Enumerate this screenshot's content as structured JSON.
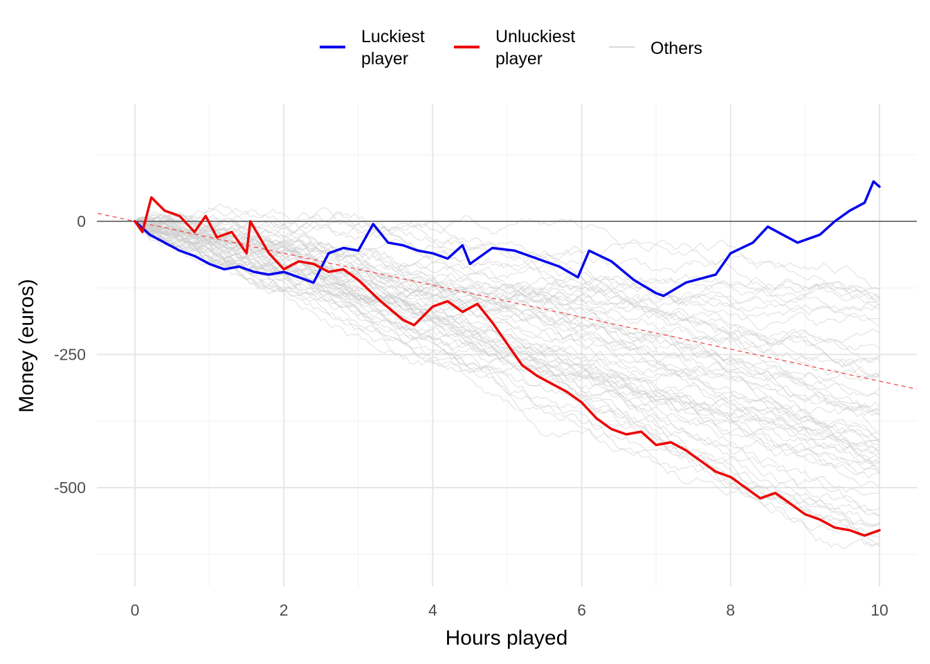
{
  "chart_data": {
    "type": "line",
    "xlabel": "Hours played",
    "ylabel": "Money (euros)",
    "xlim": [
      -0.5,
      10.5
    ],
    "ylim": [
      -660,
      220
    ],
    "x_ticks": [
      0,
      2,
      4,
      6,
      8,
      10
    ],
    "x_tick_labels": [
      "0",
      "2",
      "4",
      "6",
      "8",
      "10"
    ],
    "y_ticks": [
      0,
      -250,
      -500
    ],
    "y_tick_labels": [
      "0",
      "-250",
      "-500"
    ],
    "grid": true,
    "legend_position": "top",
    "legend": [
      {
        "label_lines": [
          "Luckiest",
          "player"
        ],
        "color": "#0000ee",
        "style": "thick"
      },
      {
        "label_lines": [
          "Unluckiest",
          "player"
        ],
        "color": "#ee0000",
        "style": "thick"
      },
      {
        "label_lines": [
          "Others"
        ],
        "color": "#cccccc",
        "style": "thin"
      }
    ],
    "reference_lines": [
      {
        "kind": "horizontal",
        "y": 0,
        "color": "#555555"
      },
      {
        "kind": "expected_trend",
        "x": [
          -0.5,
          10.5
        ],
        "y": [
          15,
          -315
        ],
        "color": "#ee5555",
        "dashed": true
      }
    ],
    "series": [
      {
        "name": "Luckiest player",
        "color": "#0000ee",
        "x": [
          0,
          0.2,
          0.4,
          0.6,
          0.8,
          1.0,
          1.2,
          1.4,
          1.6,
          1.8,
          2.0,
          2.2,
          2.4,
          2.6,
          2.8,
          3.0,
          3.2,
          3.4,
          3.6,
          3.8,
          4.0,
          4.2,
          4.4,
          4.5,
          4.8,
          5.1,
          5.4,
          5.7,
          5.95,
          6.1,
          6.4,
          6.7,
          7.0,
          7.1,
          7.4,
          7.8,
          8.0,
          8.3,
          8.5,
          8.7,
          8.9,
          9.2,
          9.4,
          9.6,
          9.8,
          9.92,
          10.0
        ],
        "y": [
          0,
          -25,
          -40,
          -55,
          -65,
          -80,
          -90,
          -85,
          -95,
          -100,
          -95,
          -105,
          -115,
          -60,
          -50,
          -55,
          -5,
          -40,
          -45,
          -55,
          -60,
          -70,
          -45,
          -80,
          -50,
          -55,
          -70,
          -85,
          -105,
          -55,
          -75,
          -110,
          -135,
          -140,
          -115,
          -100,
          -60,
          -40,
          -10,
          -25,
          -40,
          -25,
          0,
          20,
          35,
          75,
          65
        ]
      },
      {
        "name": "Unluckiest player",
        "color": "#ee0000",
        "x": [
          0,
          0.1,
          0.22,
          0.4,
          0.6,
          0.8,
          0.95,
          1.1,
          1.3,
          1.5,
          1.55,
          1.8,
          2.0,
          2.2,
          2.4,
          2.6,
          2.8,
          3.0,
          3.3,
          3.6,
          3.75,
          4.0,
          4.2,
          4.4,
          4.6,
          4.8,
          5.0,
          5.2,
          5.4,
          5.6,
          5.8,
          6.0,
          6.2,
          6.4,
          6.6,
          6.8,
          7.0,
          7.2,
          7.4,
          7.6,
          7.8,
          8.0,
          8.2,
          8.4,
          8.6,
          8.8,
          9.0,
          9.2,
          9.4,
          9.6,
          9.8,
          10.0
        ],
        "y": [
          0,
          -20,
          45,
          20,
          10,
          -20,
          10,
          -30,
          -20,
          -60,
          0,
          -60,
          -90,
          -75,
          -80,
          -95,
          -90,
          -110,
          -150,
          -185,
          -195,
          -160,
          -150,
          -170,
          -155,
          -190,
          -230,
          -270,
          -290,
          -305,
          -320,
          -340,
          -370,
          -390,
          -400,
          -395,
          -420,
          -415,
          -430,
          -450,
          -470,
          -480,
          -500,
          -520,
          -510,
          -530,
          -550,
          -560,
          -575,
          -580,
          -590,
          -580
        ]
      }
    ],
    "others": {
      "name": "Others",
      "color": "#cccccc",
      "count": 60,
      "x_range": [
        0,
        10
      ],
      "end_value_range": [
        -620,
        -120
      ]
    }
  }
}
